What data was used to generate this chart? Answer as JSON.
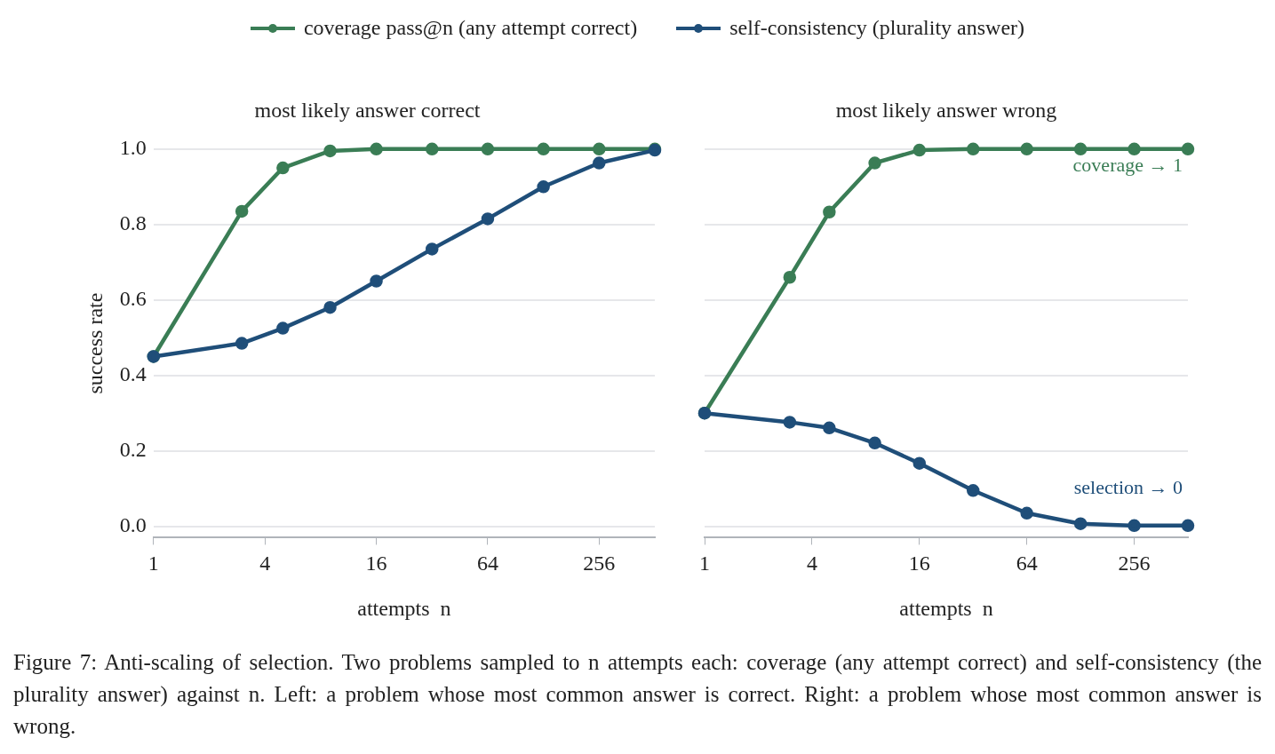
{
  "chart_data": [
    {
      "type": "line",
      "title": "most likely answer correct",
      "xlabel": "attempts  n",
      "ylabel": "success rate",
      "log": "x",
      "x": [
        1,
        3,
        5,
        9,
        16,
        32,
        64,
        128,
        256,
        512
      ],
      "xlim": [
        1,
        512
      ],
      "xticks": [
        1,
        4,
        16,
        64,
        256
      ],
      "ylim": [
        -0.03,
        1.0
      ],
      "yticks": [
        {
          "value": 0,
          "label": "0.0"
        },
        {
          "value": 0.2,
          "label": "0.2"
        },
        {
          "value": 0.4,
          "label": "0.4"
        },
        {
          "value": 0.6,
          "label": "0.6"
        },
        {
          "value": 0.8,
          "label": "0.8"
        },
        {
          "value": 1,
          "label": "1.0"
        }
      ],
      "grid": "y",
      "marker": "circle",
      "legend": "top",
      "series": [
        {
          "name": "coverage  pass@n  (any attempt correct)",
          "color": "#3a7d55",
          "values": [
            0.45,
            0.835,
            0.95,
            0.995,
            1,
            1,
            1,
            1,
            1,
            1
          ]
        },
        {
          "name": "self-consistency  (plurality answer)",
          "color": "#1f4e79",
          "values": [
            0.45,
            0.485,
            0.525,
            0.58,
            0.65,
            0.735,
            0.815,
            0.9,
            0.963,
            0.997
          ]
        }
      ],
      "annotations": [
        "Figure 7: Anti-scaling of selection. Two problems sampled to n attempts each: coverage (any attempt correct) and self-consistency (the plurality answer) against n. Left: a problem whose most common answer is correct. Right: a problem whose most common answer is wrong."
      ]
    },
    {
      "type": "line",
      "title": "most likely answer wrong",
      "xlabel": "attempts  n",
      "log": "x",
      "x": [
        1,
        3,
        5,
        9,
        16,
        32,
        64,
        128,
        256,
        512
      ],
      "xlim": [
        1,
        512
      ],
      "xticks": [
        1,
        4,
        16,
        64,
        256
      ],
      "ylim": [
        -0.03,
        1.0
      ],
      "yticks": [
        0,
        0.2,
        0.4,
        0.6,
        0.8,
        1
      ],
      "grid": "y",
      "marker": "circle",
      "tick_labels": "x",
      "series": [
        {
          "color": "#3a7d55",
          "values": [
            0.3,
            0.66,
            0.833,
            0.963,
            0.997,
            1,
            1,
            1,
            1,
            1
          ]
        },
        {
          "color": "#1f4e79",
          "values": [
            0.3,
            0.276,
            0.261,
            0.221,
            0.167,
            0.095,
            0.035,
            0.007,
            0.002,
            0.002
          ]
        }
      ],
      "annotations": [
        "coverage → 1",
        "selection → 0"
      ]
    }
  ]
}
